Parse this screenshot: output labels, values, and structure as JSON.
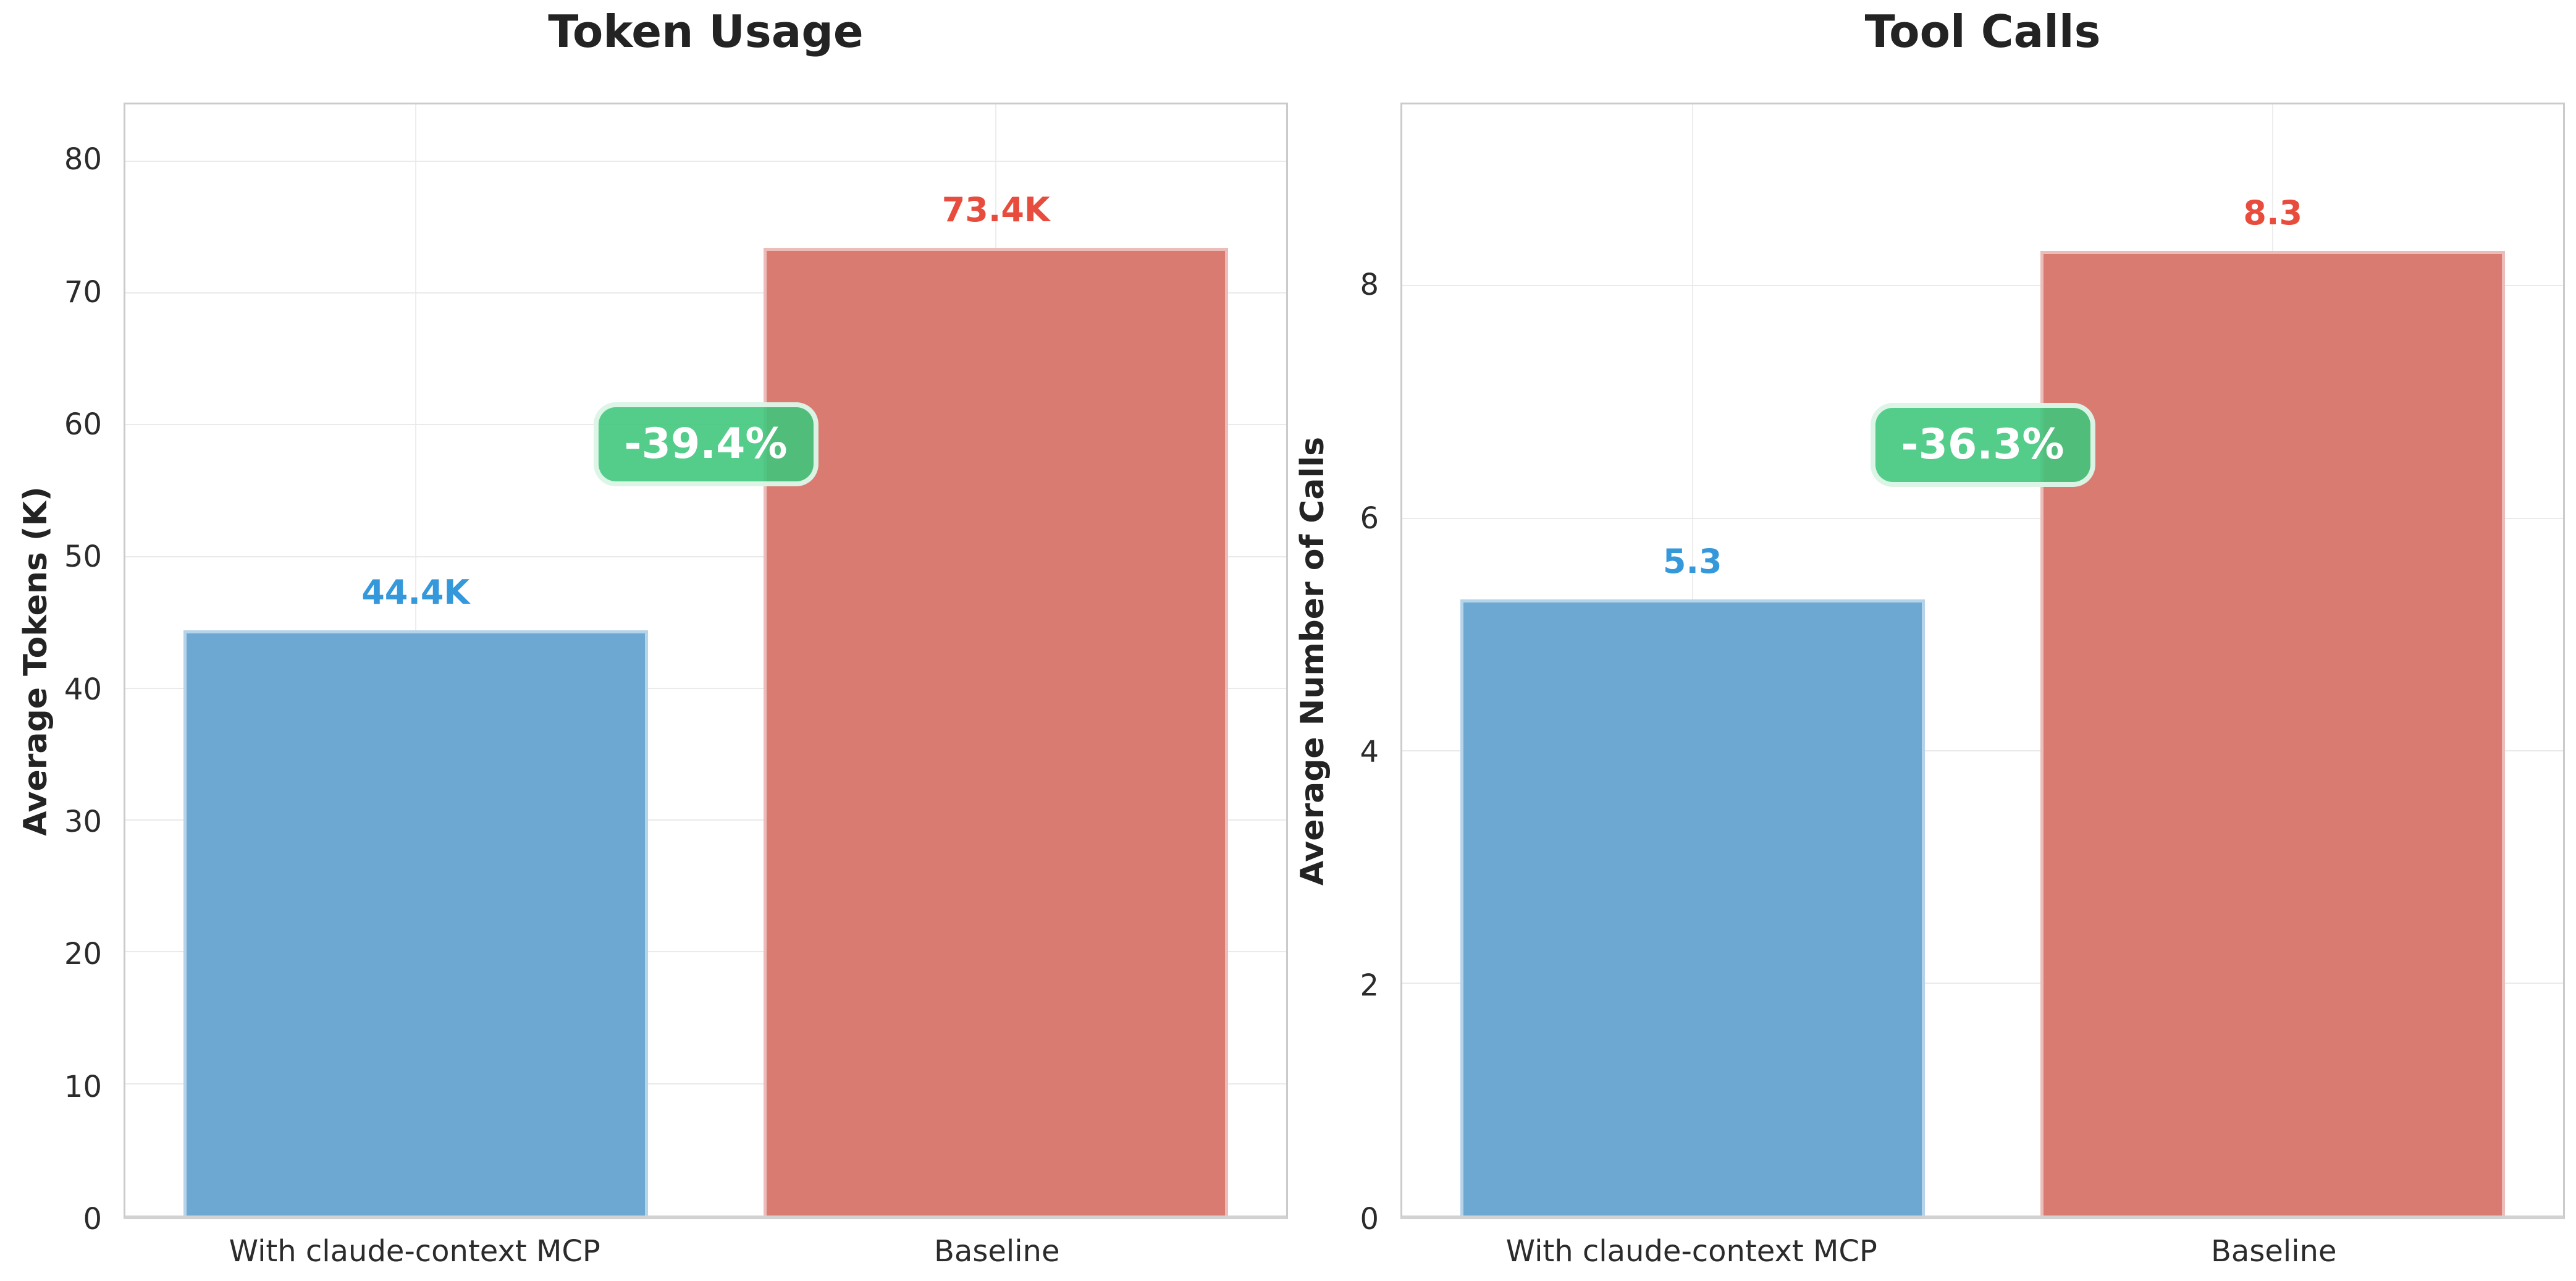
{
  "figure": {
    "background": "#ffffff"
  },
  "style": {
    "grid_color": "#eaeaea",
    "spine_color": "#cbcbcb",
    "axis_line_color": "#d2d2d2",
    "tick_text_color": "#2b2b2b",
    "title_color": "#232323",
    "bar_edge_color": "rgba(255,255,255,0.50)"
  },
  "chart_data": [
    {
      "type": "bar",
      "title": "Token Usage",
      "ylabel": "Average Tokens (K)",
      "xlabel": "",
      "categories": [
        "With claude-context MCP",
        "Baseline"
      ],
      "values": [
        44.4,
        73.4
      ],
      "value_labels": [
        "44.4K",
        "73.4K"
      ],
      "value_label_colors": [
        "#3498db",
        "#e74c3c"
      ],
      "bar_colors": [
        "#6ca8d2",
        "#d97b70"
      ],
      "yticks": [
        0,
        10,
        20,
        30,
        40,
        50,
        60,
        70,
        80
      ],
      "ylim": [
        0,
        84.3
      ],
      "grid": true,
      "legend_position": "none",
      "annotation": {
        "label": "-39.4%",
        "bg_color": "rgba(60,198,123,0.88)",
        "text_color": "#ffffff",
        "x_frac": 0.5,
        "y_value": 58.5
      }
    },
    {
      "type": "bar",
      "title": "Tool Calls",
      "ylabel": "Average Number of Calls",
      "xlabel": "",
      "categories": [
        "With claude-context MCP",
        "Baseline"
      ],
      "values": [
        5.3,
        8.3
      ],
      "value_labels": [
        "5.3",
        "8.3"
      ],
      "value_label_colors": [
        "#3498db",
        "#e74c3c"
      ],
      "bar_colors": [
        "#6ca8d2",
        "#d97b70"
      ],
      "yticks": [
        0,
        2,
        4,
        6,
        8
      ],
      "ylim": [
        0,
        9.56
      ],
      "grid": true,
      "legend_position": "none",
      "annotation": {
        "label": "-36.3%",
        "bg_color": "rgba(60,198,123,0.88)",
        "text_color": "#ffffff",
        "x_frac": 0.5,
        "y_value": 6.63
      }
    }
  ]
}
